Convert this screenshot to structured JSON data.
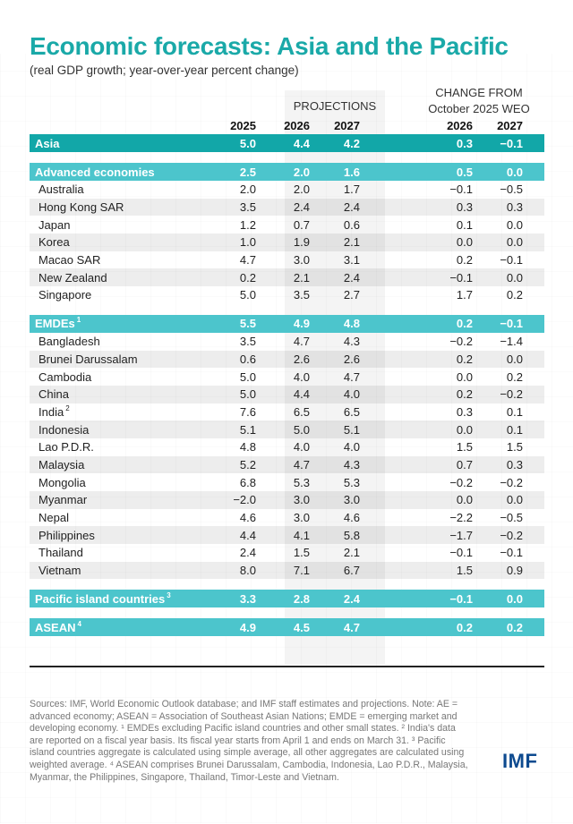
{
  "title": "Economic forecasts: Asia and the Pacific",
  "subtitle": "(real GDP growth; year-over-year percent change)",
  "column_groups": {
    "projections": "PROJECTIONS",
    "change_line1": "CHANGE FROM",
    "change_line2": "October 2025 WEO"
  },
  "columns": [
    "2025",
    "2026",
    "2027",
    "2026",
    "2027"
  ],
  "rows": [
    {
      "name": "Asia",
      "sup": "",
      "type": "total",
      "values": [
        "5.0",
        "4.4",
        "4.2",
        "0.3",
        "−0.1"
      ]
    },
    {
      "name": "Advanced economies",
      "sup": "",
      "type": "group",
      "values": [
        "2.5",
        "2.0",
        "1.6",
        "0.5",
        "0.0"
      ]
    },
    {
      "name": "Australia",
      "sup": "",
      "type": "item",
      "values": [
        "2.0",
        "2.0",
        "1.7",
        "−0.1",
        "−0.5"
      ]
    },
    {
      "name": "Hong Kong SAR",
      "sup": "",
      "type": "item",
      "values": [
        "3.5",
        "2.4",
        "2.4",
        "0.3",
        "0.3"
      ]
    },
    {
      "name": "Japan",
      "sup": "",
      "type": "item",
      "values": [
        "1.2",
        "0.7",
        "0.6",
        "0.1",
        "0.0"
      ]
    },
    {
      "name": "Korea",
      "sup": "",
      "type": "item",
      "values": [
        "1.0",
        "1.9",
        "2.1",
        "0.0",
        "0.0"
      ]
    },
    {
      "name": "Macao SAR",
      "sup": "",
      "type": "item",
      "values": [
        "4.7",
        "3.0",
        "3.1",
        "0.2",
        "−0.1"
      ]
    },
    {
      "name": "New Zealand",
      "sup": "",
      "type": "item",
      "values": [
        "0.2",
        "2.1",
        "2.4",
        "−0.1",
        "0.0"
      ]
    },
    {
      "name": "Singapore",
      "sup": "",
      "type": "item",
      "values": [
        "5.0",
        "3.5",
        "2.7",
        "1.7",
        "0.2"
      ]
    },
    {
      "name": "EMDEs",
      "sup": "1",
      "type": "group",
      "values": [
        "5.5",
        "4.9",
        "4.8",
        "0.2",
        "−0.1"
      ]
    },
    {
      "name": "Bangladesh",
      "sup": "",
      "type": "item",
      "values": [
        "3.5",
        "4.7",
        "4.3",
        "−0.2",
        "−1.4"
      ]
    },
    {
      "name": "Brunei Darussalam",
      "sup": "",
      "type": "item",
      "values": [
        "0.6",
        "2.6",
        "2.6",
        "0.2",
        "0.0"
      ]
    },
    {
      "name": "Cambodia",
      "sup": "",
      "type": "item",
      "values": [
        "5.0",
        "4.0",
        "4.7",
        "0.0",
        "0.2"
      ]
    },
    {
      "name": "China",
      "sup": "",
      "type": "item",
      "values": [
        "5.0",
        "4.4",
        "4.0",
        "0.2",
        "−0.2"
      ]
    },
    {
      "name": "India",
      "sup": "2",
      "type": "item",
      "values": [
        "7.6",
        "6.5",
        "6.5",
        "0.3",
        "0.1"
      ]
    },
    {
      "name": "Indonesia",
      "sup": "",
      "type": "item",
      "values": [
        "5.1",
        "5.0",
        "5.1",
        "0.0",
        "0.1"
      ]
    },
    {
      "name": "Lao P.D.R.",
      "sup": "",
      "type": "item",
      "values": [
        "4.8",
        "4.0",
        "4.0",
        "1.5",
        "1.5"
      ]
    },
    {
      "name": "Malaysia",
      "sup": "",
      "type": "item",
      "values": [
        "5.2",
        "4.7",
        "4.3",
        "0.7",
        "0.3"
      ]
    },
    {
      "name": "Mongolia",
      "sup": "",
      "type": "item",
      "values": [
        "6.8",
        "5.3",
        "5.3",
        "−0.2",
        "−0.2"
      ]
    },
    {
      "name": "Myanmar",
      "sup": "",
      "type": "item",
      "values": [
        "−2.0",
        "3.0",
        "3.0",
        "0.0",
        "0.0"
      ]
    },
    {
      "name": "Nepal",
      "sup": "",
      "type": "item",
      "values": [
        "4.6",
        "3.0",
        "4.6",
        "−2.2",
        "−0.5"
      ]
    },
    {
      "name": "Philippines",
      "sup": "",
      "type": "item",
      "values": [
        "4.4",
        "4.1",
        "5.8",
        "−1.7",
        "−0.2"
      ]
    },
    {
      "name": "Thailand",
      "sup": "",
      "type": "item",
      "values": [
        "2.4",
        "1.5",
        "2.1",
        "−0.1",
        "−0.1"
      ]
    },
    {
      "name": "Vietnam",
      "sup": "",
      "type": "item",
      "values": [
        "8.0",
        "7.1",
        "6.7",
        "1.5",
        "0.9"
      ]
    },
    {
      "name": "Pacific island countries",
      "sup": "3",
      "type": "group",
      "values": [
        "3.3",
        "2.8",
        "2.4",
        "−0.1",
        "0.0"
      ]
    },
    {
      "name": "ASEAN",
      "sup": "4",
      "type": "group",
      "values": [
        "4.9",
        "4.5",
        "4.7",
        "0.2",
        "0.2"
      ]
    }
  ],
  "notes": "Sources: IMF, World Economic Outlook database; and IMF staff estimates and projections. Note: AE = advanced economy; ASEAN = Association of Southeast Asian Nations; EMDE = emerging market and developing economy. ¹ EMDEs excluding Pacific island countries and other small states. ² India's data are reported on a fiscal year basis. Its fiscal year starts from April 1 and ends on March 31. ³ Pacific island countries aggregate is calculated using simple average, all other aggregates are calculated using weighted average. ⁴ ASEAN comprises Brunei Darussalam, Cambodia, Indonesia, Lao P.D.R., Malaysia, Myanmar, the Philippines, Singapore, Thailand, Timor-Leste and Vietnam.",
  "logo": "IMF",
  "colors": {
    "title": "#1aa9a8",
    "total_row": "#12a7a8",
    "group_row": "#4cc5cc",
    "logo": "#0d4a8f"
  },
  "chart_data": {
    "type": "table",
    "title": "Economic forecasts: Asia and the Pacific",
    "subtitle": "(real GDP growth; year-over-year percent change)",
    "columns": [
      "2025",
      "2026 (proj.)",
      "2027 (proj.)",
      "Change from Oct 2025 WEO: 2026",
      "Change from Oct 2025 WEO: 2027"
    ],
    "rows": [
      [
        "Asia",
        5.0,
        4.4,
        4.2,
        0.3,
        -0.1
      ],
      [
        "Advanced economies",
        2.5,
        2.0,
        1.6,
        0.5,
        0.0
      ],
      [
        "Australia",
        2.0,
        2.0,
        1.7,
        -0.1,
        -0.5
      ],
      [
        "Hong Kong SAR",
        3.5,
        2.4,
        2.4,
        0.3,
        0.3
      ],
      [
        "Japan",
        1.2,
        0.7,
        0.6,
        0.1,
        0.0
      ],
      [
        "Korea",
        1.0,
        1.9,
        2.1,
        0.0,
        0.0
      ],
      [
        "Macao SAR",
        4.7,
        3.0,
        3.1,
        0.2,
        -0.1
      ],
      [
        "New Zealand",
        0.2,
        2.1,
        2.4,
        -0.1,
        0.0
      ],
      [
        "Singapore",
        5.0,
        3.5,
        2.7,
        1.7,
        0.2
      ],
      [
        "EMDEs",
        5.5,
        4.9,
        4.8,
        0.2,
        -0.1
      ],
      [
        "Bangladesh",
        3.5,
        4.7,
        4.3,
        -0.2,
        -1.4
      ],
      [
        "Brunei Darussalam",
        0.6,
        2.6,
        2.6,
        0.2,
        0.0
      ],
      [
        "Cambodia",
        5.0,
        4.0,
        4.7,
        0.0,
        0.2
      ],
      [
        "China",
        5.0,
        4.4,
        4.0,
        0.2,
        -0.2
      ],
      [
        "India",
        7.6,
        6.5,
        6.5,
        0.3,
        0.1
      ],
      [
        "Indonesia",
        5.1,
        5.0,
        5.1,
        0.0,
        0.1
      ],
      [
        "Lao P.D.R.",
        4.8,
        4.0,
        4.0,
        1.5,
        1.5
      ],
      [
        "Malaysia",
        5.2,
        4.7,
        4.3,
        0.7,
        0.3
      ],
      [
        "Mongolia",
        6.8,
        5.3,
        5.3,
        -0.2,
        -0.2
      ],
      [
        "Myanmar",
        -2.0,
        3.0,
        3.0,
        0.0,
        0.0
      ],
      [
        "Nepal",
        4.6,
        3.0,
        4.6,
        -2.2,
        -0.5
      ],
      [
        "Philippines",
        4.4,
        4.1,
        5.8,
        -1.7,
        -0.2
      ],
      [
        "Thailand",
        2.4,
        1.5,
        2.1,
        -0.1,
        -0.1
      ],
      [
        "Vietnam",
        8.0,
        7.1,
        6.7,
        1.5,
        0.9
      ],
      [
        "Pacific island countries",
        3.3,
        2.8,
        2.4,
        -0.1,
        0.0
      ],
      [
        "ASEAN",
        4.9,
        4.5,
        4.7,
        0.2,
        0.2
      ]
    ]
  }
}
